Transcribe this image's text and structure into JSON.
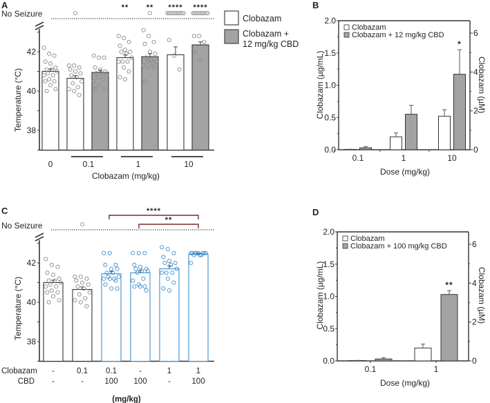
{
  "chart_data": [
    {
      "id": "A",
      "type": "bar",
      "panel_label": "A",
      "ylabel": "Temperature (°C)",
      "xlabel": "Clobazam (mg/kg)",
      "ylim": [
        37,
        43.5
      ],
      "yticks": [
        38,
        40,
        42
      ],
      "top_label": "No Seizure",
      "groups": [
        "0",
        "0.1",
        "1",
        "10"
      ],
      "legend": [
        "Clobazam",
        "Clobazam + 12 mg/kg CBD"
      ],
      "legend_placement": "top-right",
      "bars": [
        {
          "group": "0",
          "series": "Clobazam",
          "value": 41.0,
          "sem": 0.12,
          "points": [
            42.2,
            41.9,
            41.8,
            41.5,
            41.4,
            41.2,
            41.1,
            41.1,
            41.0,
            40.9,
            40.8,
            40.8,
            40.6,
            40.5,
            40.5,
            40.3,
            40.1,
            40.0
          ],
          "no_seizure": 0,
          "sig": ""
        },
        {
          "group": "0.1",
          "series": "Clobazam",
          "value": 40.65,
          "sem": 0.13,
          "points": [
            41.3,
            41.3,
            41.2,
            41.1,
            41.0,
            40.9,
            40.8,
            40.7,
            40.5,
            40.4,
            40.2,
            40.1,
            40.0,
            39.8
          ],
          "no_seizure": 1,
          "sig": ""
        },
        {
          "group": "0.1",
          "series": "Clobazam + 12 mg/kg CBD",
          "value": 40.95,
          "sem": 0.12,
          "points": [
            41.8,
            41.7,
            41.7,
            41.2,
            41.1,
            41.0,
            40.9,
            40.9,
            40.8,
            40.7,
            40.6,
            40.5,
            40.3,
            40.1,
            40.1
          ],
          "no_seizure": 0,
          "sig": ""
        },
        {
          "group": "1",
          "series": "Clobazam",
          "value": 41.7,
          "sem": 0.15,
          "points": [
            42.8,
            42.7,
            42.5,
            42.3,
            42.1,
            42.0,
            42.0,
            41.9,
            41.7,
            41.5,
            41.5,
            41.5,
            41.2,
            41.0,
            40.7,
            40.6
          ],
          "no_seizure": 0,
          "sig": "**"
        },
        {
          "group": "1",
          "series": "Clobazam + 12 mg/kg CBD",
          "value": 41.75,
          "sem": 0.15,
          "points": [
            43.1,
            42.8,
            42.5,
            42.4,
            42.0,
            41.9,
            41.7,
            41.6,
            41.5,
            41.5,
            41.4,
            41.3,
            41.2,
            41.2,
            40.5
          ],
          "no_seizure": 1,
          "sig": "**"
        },
        {
          "group": "10",
          "series": "Clobazam",
          "value": 41.85,
          "sem": 0.4,
          "points": [
            42.6,
            41.8,
            41.1
          ],
          "no_seizure": 10,
          "sig": "****"
        },
        {
          "group": "10",
          "series": "Clobazam + 12 mg/kg CBD",
          "value": 42.35,
          "sem": 0.15,
          "points": [
            42.8,
            42.8,
            42.5,
            42.0,
            41.6
          ],
          "no_seizure": 9,
          "sig": "****"
        }
      ]
    },
    {
      "id": "B",
      "type": "bar",
      "panel_label": "B",
      "ylabel": "Clobazam (µg/mL)",
      "ylabel_right": "Clobazam (µM)",
      "xlabel": "Dose (mg/kg)",
      "ylim": [
        0,
        2.0
      ],
      "yticks": [
        "0.0",
        "0.5",
        "1.0",
        "1.5",
        "2.0"
      ],
      "ylim_right": [
        0,
        6.64
      ],
      "yticks_right": [
        "0",
        "2",
        "4",
        "6"
      ],
      "categories": [
        "0.1",
        "1",
        "10"
      ],
      "legend": [
        "Clobazam",
        "Clobazam + 12 mg/kg CBD"
      ],
      "legend_placement": "top-left",
      "series": [
        {
          "name": "Clobazam",
          "values": [
            0.005,
            0.2,
            0.52
          ],
          "errors": [
            0.003,
            0.06,
            0.1
          ]
        },
        {
          "name": "Clobazam + 12 mg/kg CBD",
          "values": [
            0.03,
            0.55,
            1.17
          ],
          "errors": [
            0.02,
            0.14,
            0.38
          ]
        }
      ],
      "annotations": [
        {
          "category": "10",
          "series": "Clobazam + 12 mg/kg CBD",
          "text": "*"
        }
      ]
    },
    {
      "id": "C",
      "type": "bar",
      "panel_label": "C",
      "ylabel": "Temperature (°C)",
      "ylim": [
        37,
        43.5
      ],
      "yticks": [
        38,
        40,
        42
      ],
      "top_label": "No Seizure",
      "row_labels": [
        "Clobazam",
        "CBD"
      ],
      "unit_label": "(mg/kg)",
      "bars": [
        {
          "clobazam": "-",
          "cbd": "-",
          "value": 41.0,
          "sem": 0.12,
          "color": "gray",
          "points": [
            42.2,
            41.9,
            41.8,
            41.5,
            41.4,
            41.2,
            41.1,
            41.1,
            41.0,
            40.9,
            40.8,
            40.8,
            40.6,
            40.5,
            40.5,
            40.3,
            40.1,
            40.0
          ],
          "no_seizure": 0
        },
        {
          "clobazam": "0.1",
          "cbd": "-",
          "value": 40.65,
          "sem": 0.13,
          "color": "gray",
          "points": [
            41.3,
            41.3,
            41.2,
            41.1,
            41.0,
            40.9,
            40.8,
            40.7,
            40.5,
            40.4,
            40.2,
            40.1,
            40.0,
            39.8
          ],
          "no_seizure": 1
        },
        {
          "clobazam": "0.1",
          "cbd": "100",
          "value": 41.45,
          "sem": 0.12,
          "color": "blue",
          "points": [
            42.5,
            42.5,
            41.9,
            41.9,
            41.7,
            41.7,
            41.5,
            41.5,
            41.3,
            41.3,
            41.2,
            41.2,
            41.2,
            41.1,
            40.9,
            40.7,
            40.7
          ],
          "no_seizure": 0
        },
        {
          "clobazam": "-",
          "cbd": "100",
          "value": 41.5,
          "sem": 0.12,
          "color": "blue",
          "points": [
            42.5,
            42.5,
            42.5,
            41.9,
            41.8,
            41.7,
            41.7,
            41.6,
            41.6,
            41.5,
            41.2,
            41.1,
            40.9,
            40.8,
            40.8,
            40.8,
            40.6
          ],
          "no_seizure": 0
        },
        {
          "clobazam": "1",
          "cbd": "-",
          "value": 41.7,
          "sem": 0.15,
          "color": "blue",
          "points": [
            42.8,
            42.7,
            42.5,
            42.3,
            42.1,
            42.0,
            42.0,
            41.9,
            41.7,
            41.5,
            41.5,
            41.5,
            41.2,
            41.0,
            40.7,
            40.6
          ],
          "no_seizure": 0
        },
        {
          "clobazam": "1",
          "cbd": "100",
          "value": 42.45,
          "sem": 0.03,
          "color": "blue",
          "points": [
            42.5,
            42.5,
            42.5,
            42.5,
            42.5,
            42.5,
            42.4,
            42.4,
            42.5,
            42.5,
            42.4,
            42.0
          ],
          "no_seizure": 0
        }
      ],
      "brackets": [
        {
          "from": 3,
          "to": 5,
          "text": "****"
        },
        {
          "from": 4,
          "to": 5,
          "text": "**"
        }
      ]
    },
    {
      "id": "D",
      "type": "bar",
      "panel_label": "D",
      "ylabel": "Clobazam (µg/mL)",
      "ylabel_right": "Clobazam (µM)",
      "xlabel": "Dose (mg/kg)",
      "ylim": [
        0,
        2.0
      ],
      "yticks": [
        "0.0",
        "0.5",
        "1.0",
        "1.5",
        "2.0"
      ],
      "ylim_right": [
        0,
        6.64
      ],
      "yticks_right": [
        "0",
        "2",
        "4",
        "6"
      ],
      "categories": [
        "0.1",
        "1"
      ],
      "legend": [
        "Clobazam",
        "Clobazam + 100 mg/kg CBD"
      ],
      "legend_placement": "top-left",
      "series": [
        {
          "name": "Clobazam",
          "values": [
            0.005,
            0.2
          ],
          "errors": [
            0.003,
            0.06
          ]
        },
        {
          "name": "Clobazam + 100 mg/kg CBD",
          "values": [
            0.03,
            1.03
          ],
          "errors": [
            0.02,
            0.06
          ]
        }
      ],
      "annotations": [
        {
          "category": "1",
          "series": "Clobazam + 100 mg/kg CBD",
          "text": "**"
        }
      ]
    }
  ],
  "colors": {
    "bar_white": "#ffffff",
    "bar_gray": "#a3a3a3",
    "outline": "#333333",
    "point_gray": "#8a8a8a",
    "point_blue": "#3d8fcf",
    "bracket": "#7a2a2a"
  }
}
